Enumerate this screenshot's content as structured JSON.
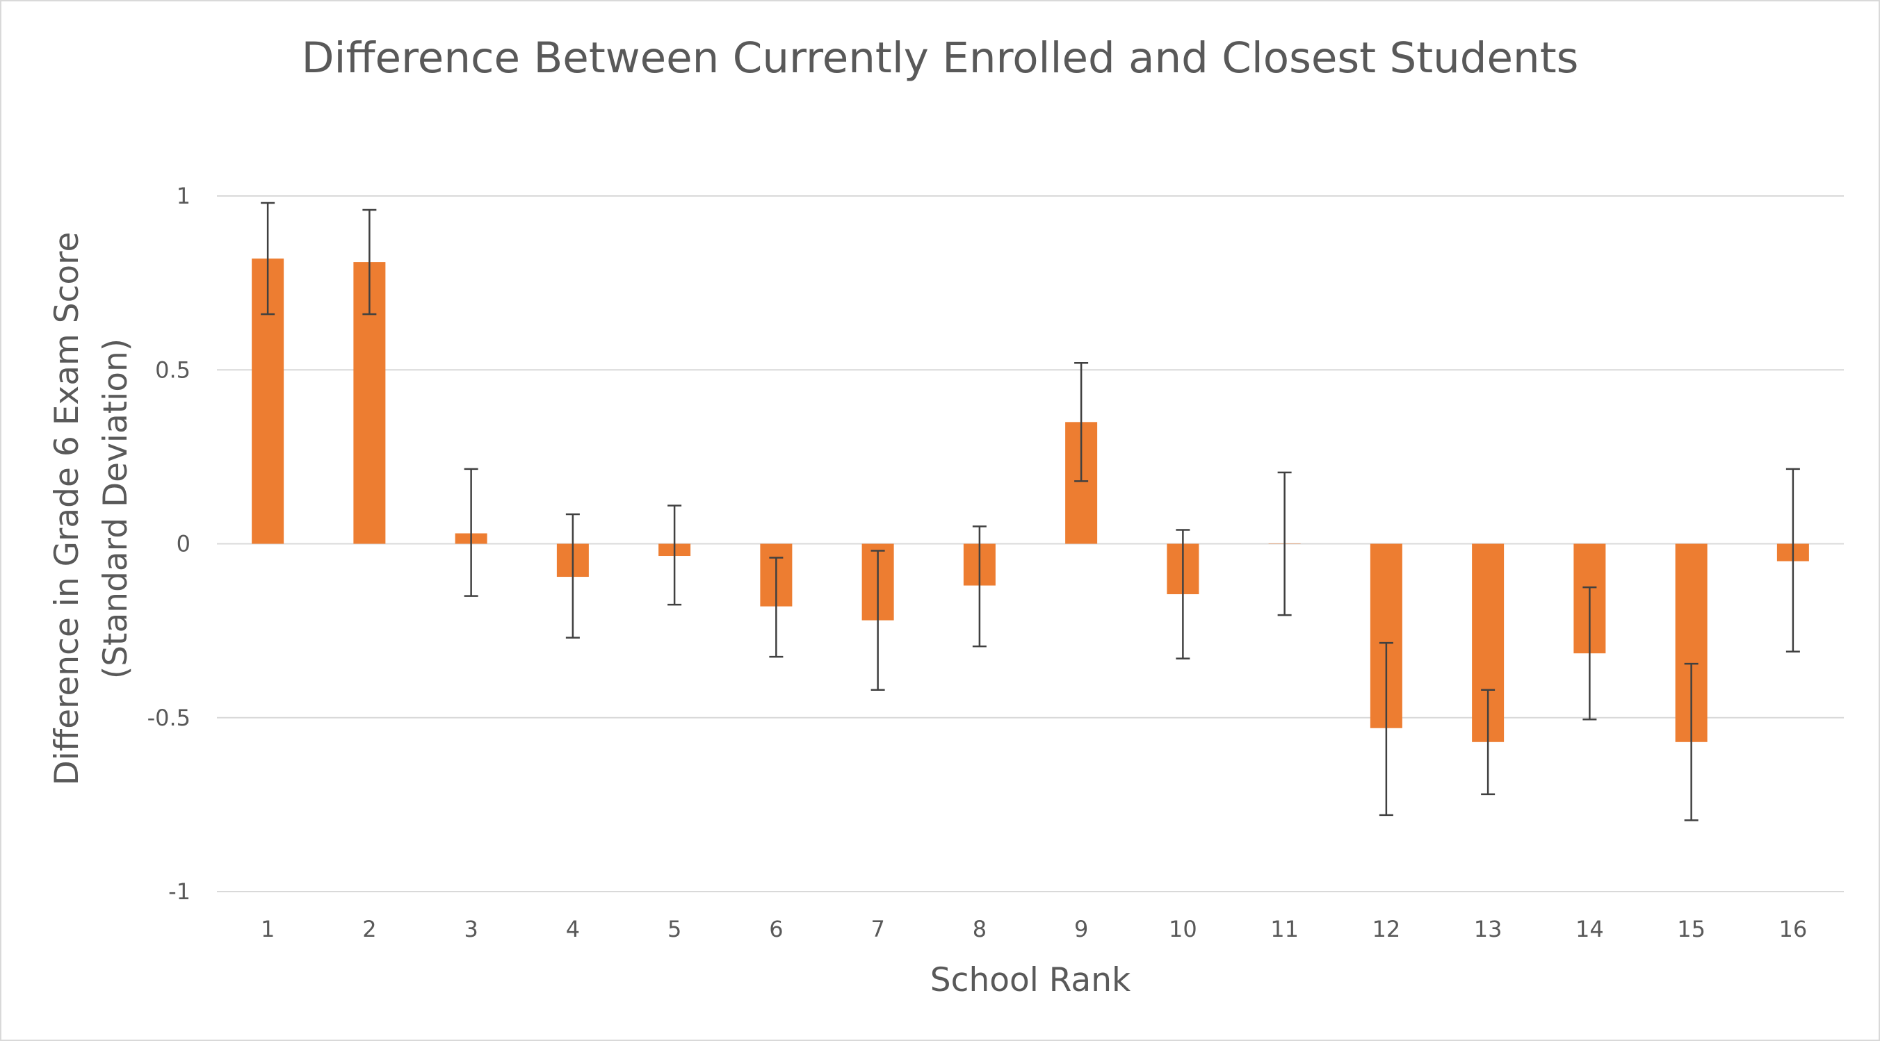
{
  "chart_data": {
    "type": "bar",
    "title": "Difference Between Currently Enrolled and Closest Students",
    "xlabel": "School Rank",
    "ylabel_lines": [
      "Difference in Grade 6 Exam Score",
      "(Standard Deviation)"
    ],
    "categories": [
      "1",
      "2",
      "3",
      "4",
      "5",
      "6",
      "7",
      "8",
      "9",
      "10",
      "11",
      "12",
      "13",
      "14",
      "15",
      "16"
    ],
    "series": [
      {
        "values": [
          0.82,
          0.81,
          0.03,
          -0.095,
          -0.035,
          -0.18,
          -0.22,
          -0.12,
          0.35,
          -0.145,
          0.0,
          -0.53,
          -0.57,
          -0.315,
          -0.57,
          -0.05
        ],
        "error_lower": [
          0.66,
          0.66,
          -0.15,
          -0.27,
          -0.175,
          -0.325,
          -0.42,
          -0.295,
          0.18,
          -0.33,
          -0.205,
          -0.78,
          -0.72,
          -0.505,
          -0.795,
          -0.31
        ],
        "error_upper": [
          0.98,
          0.96,
          0.215,
          0.085,
          0.11,
          -0.04,
          -0.02,
          0.05,
          0.52,
          0.04,
          0.205,
          -0.285,
          -0.42,
          -0.125,
          -0.345,
          0.215
        ]
      }
    ],
    "ylim": [
      -1,
      1
    ],
    "yticks": [
      1,
      0.5,
      0,
      -0.5,
      -1
    ],
    "ytick_labels": [
      "1",
      "0.5",
      "0",
      "-0.5",
      "-1"
    ],
    "grid": true,
    "legend": "none",
    "colors": {
      "bar": "#ed7d31",
      "error_bar": "#404040",
      "grid": "#d9d9d9",
      "text": "#595959"
    }
  }
}
